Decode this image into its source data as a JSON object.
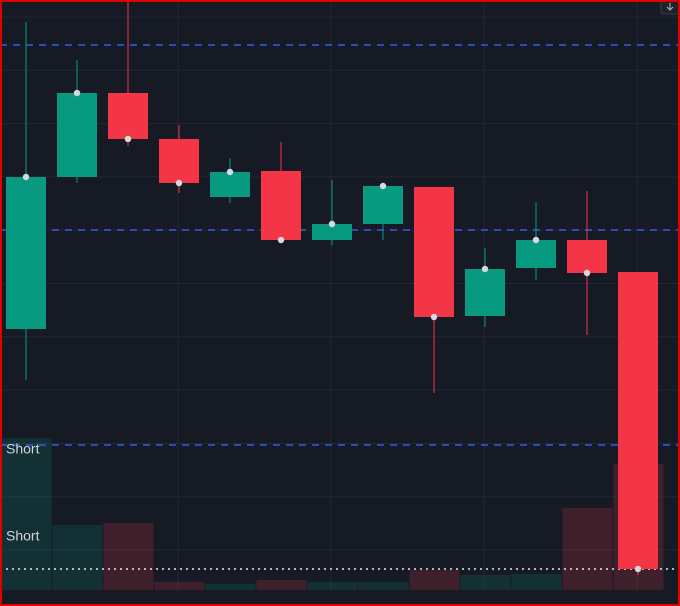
{
  "chart_data": {
    "type": "candlestick",
    "candles": [
      {
        "open": 271,
        "high": 578,
        "low": 220,
        "close": 423
      },
      {
        "open": 423,
        "high": 540,
        "low": 417,
        "close": 507
      },
      {
        "open": 507,
        "high": 598,
        "low": 454,
        "close": 461
      },
      {
        "open": 461,
        "high": 475,
        "low": 407,
        "close": 417
      },
      {
        "open": 403,
        "high": 442,
        "low": 397,
        "close": 428
      },
      {
        "open": 429,
        "high": 458,
        "low": 360,
        "close": 360
      },
      {
        "open": 360,
        "high": 420,
        "low": 355,
        "close": 376
      },
      {
        "open": 376,
        "high": 417,
        "low": 360,
        "close": 414
      },
      {
        "open": 413,
        "high": 413,
        "low": 207,
        "close": 283
      },
      {
        "open": 284,
        "high": 352,
        "low": 273,
        "close": 331
      },
      {
        "open": 332,
        "high": 398,
        "low": 320,
        "close": 360
      },
      {
        "open": 360,
        "high": 409,
        "low": 265,
        "close": 327
      },
      {
        "open": 328,
        "high": 328,
        "low": 25,
        "close": 31
      }
    ],
    "volume": [
      152,
      65,
      67,
      8,
      6,
      10,
      8,
      8,
      20,
      15,
      16,
      82,
      126
    ],
    "ylim": [
      0,
      600
    ],
    "vlim": [
      0,
      152
    ],
    "levels": [
      555,
      370,
      155
    ],
    "price_line": 31,
    "annotations": [
      "Short",
      "Short"
    ],
    "up_color": "#089981",
    "down_color": "#f23645",
    "level_color": "#2f5fe0",
    "grid": true
  }
}
